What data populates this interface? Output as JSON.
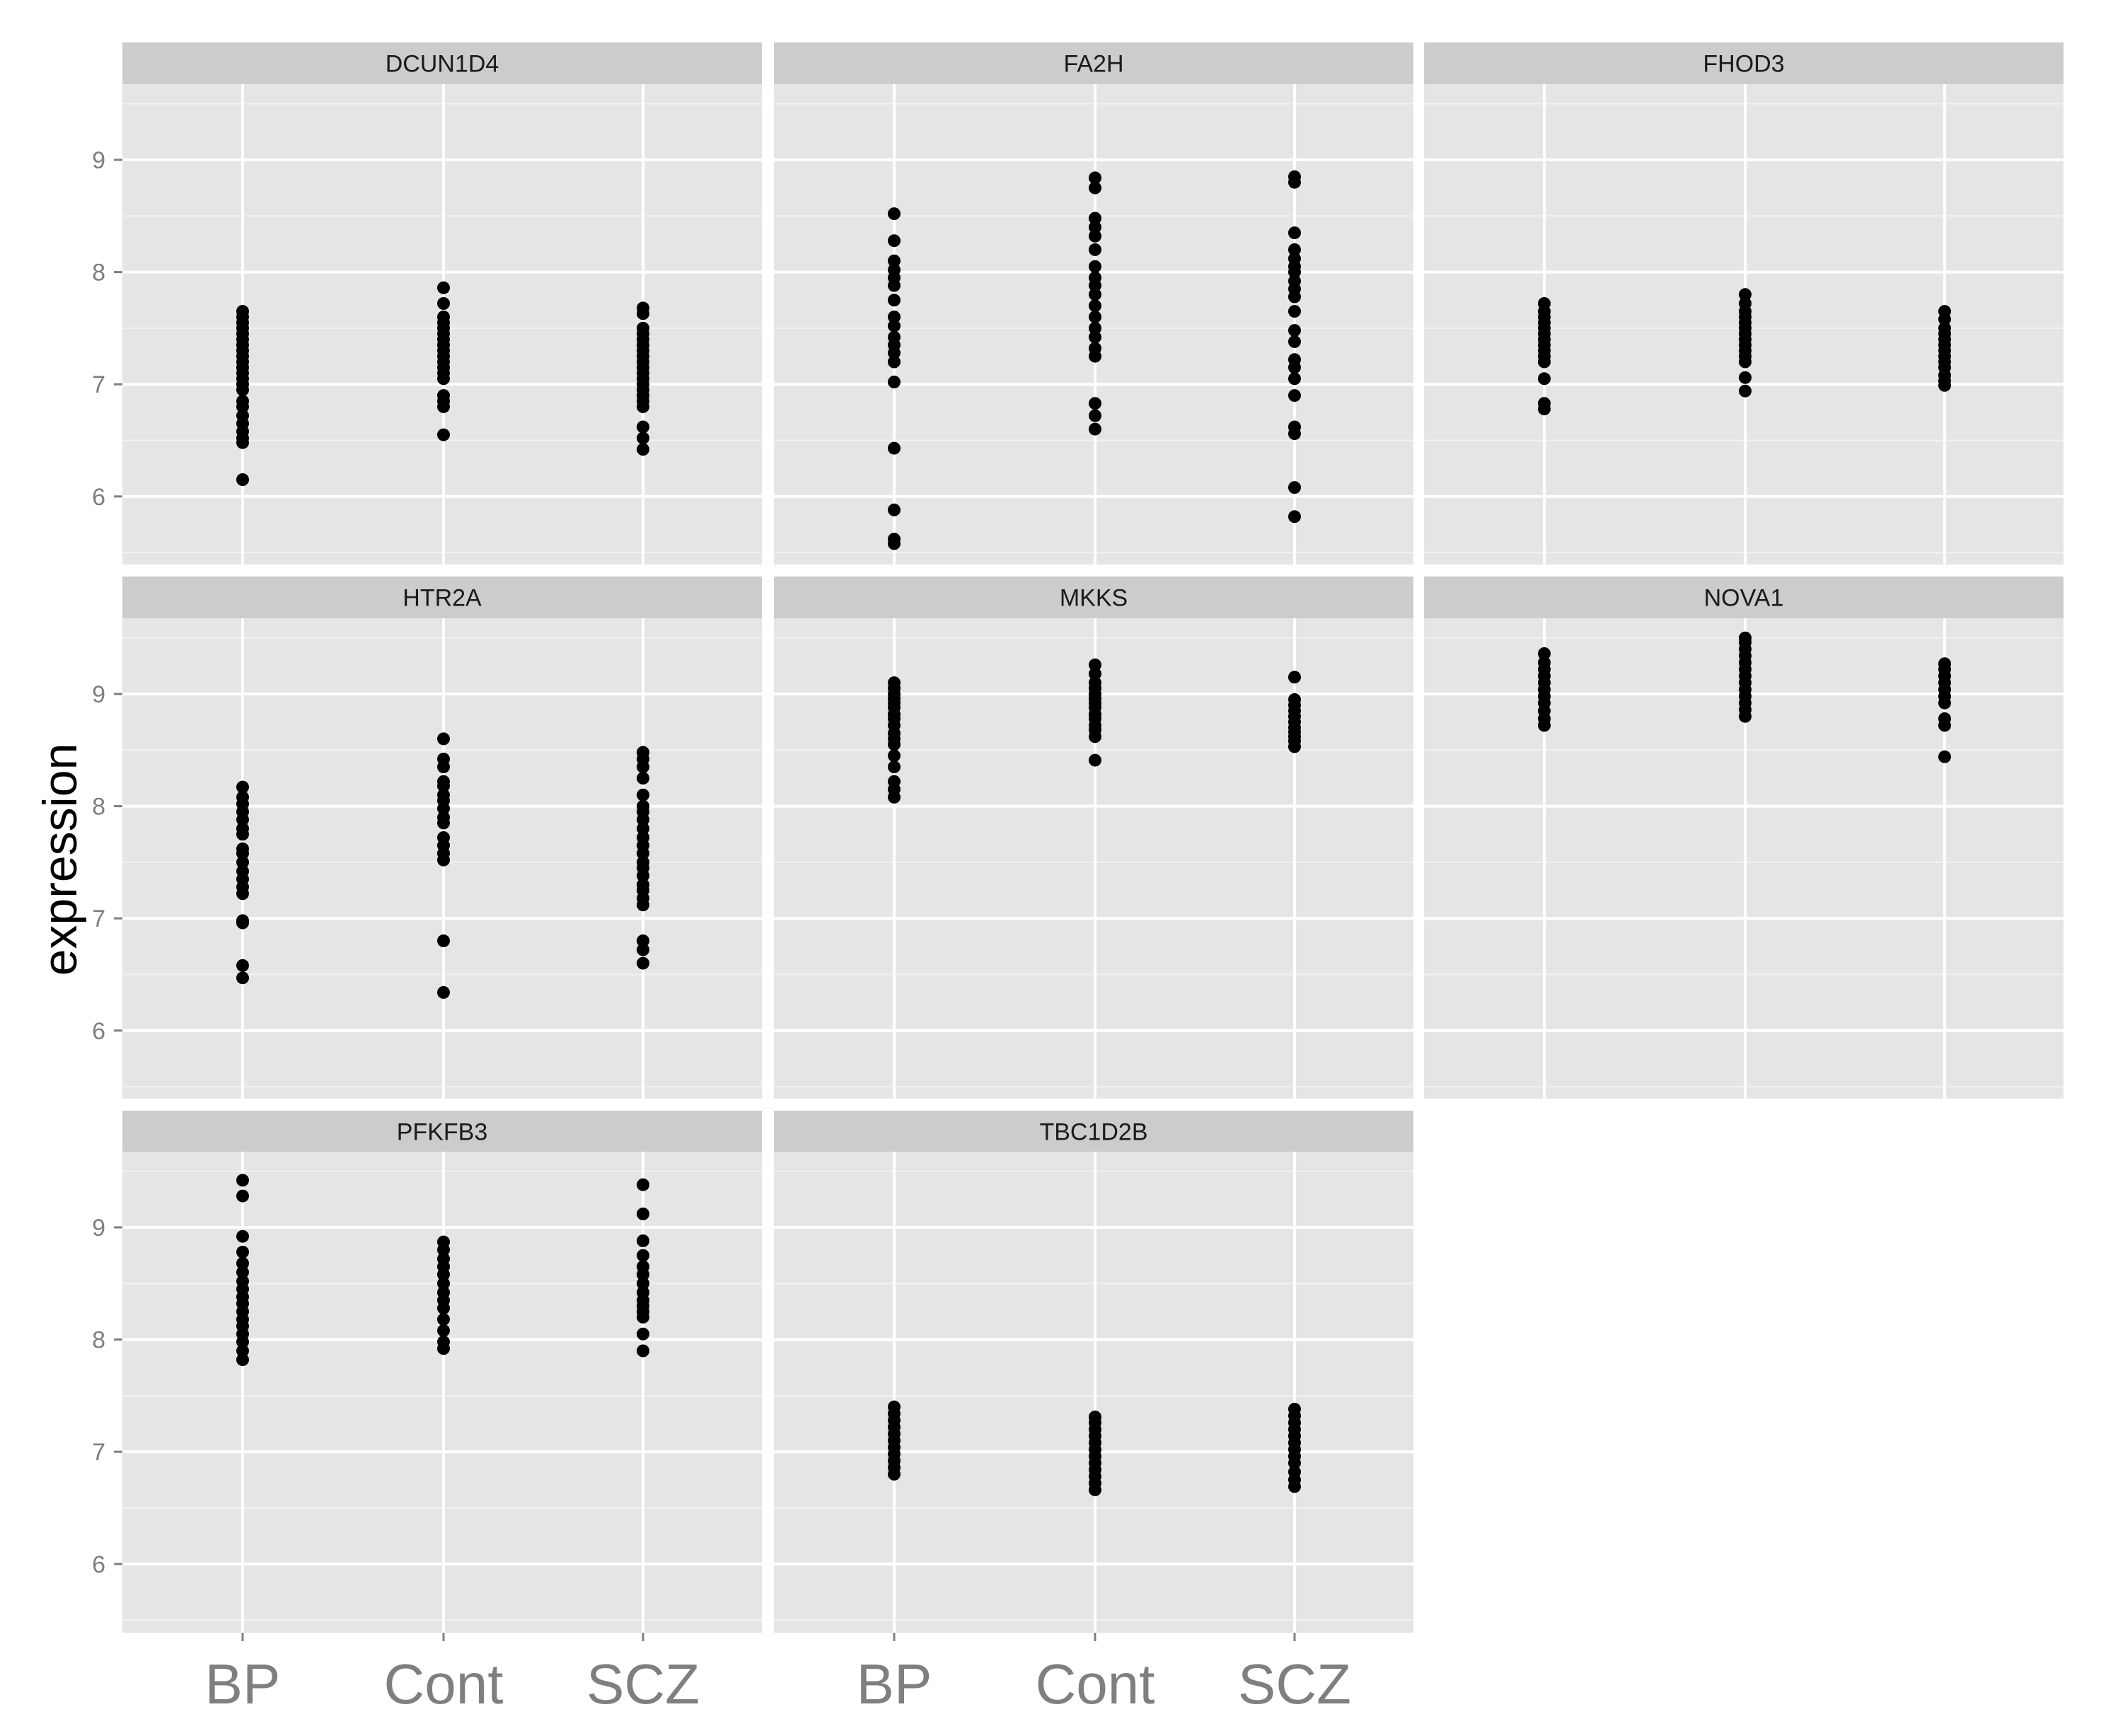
{
  "chart_data": {
    "type": "scatter",
    "facet_layout": "3 columns",
    "ylabel": "expression",
    "xlabel": "",
    "categories": [
      "BP",
      "Cont",
      "SCZ"
    ],
    "y_ticks": [
      6,
      7,
      8,
      9
    ],
    "ylim": [
      5.4,
      9.8
    ],
    "grid": true,
    "colors": {
      "panel_bg": "#e5e5e5",
      "strip_bg": "#cccccc",
      "grid_major": "#ffffff",
      "grid_minor": "#f2f2f2",
      "point": "#000000"
    },
    "panels": [
      {
        "title": "DCUN1D4",
        "series": [
          {
            "category": "BP",
            "values": [
              6.15,
              6.48,
              6.52,
              6.58,
              6.65,
              6.72,
              6.8,
              6.85,
              6.95,
              7.0,
              7.05,
              7.1,
              7.15,
              7.2,
              7.25,
              7.3,
              7.35,
              7.4,
              7.45,
              7.5,
              7.55,
              7.6,
              7.65
            ]
          },
          {
            "category": "Cont",
            "values": [
              6.55,
              6.8,
              6.85,
              6.9,
              7.05,
              7.1,
              7.15,
              7.2,
              7.25,
              7.3,
              7.35,
              7.4,
              7.45,
              7.5,
              7.55,
              7.6,
              7.72,
              7.86
            ]
          },
          {
            "category": "SCZ",
            "values": [
              6.42,
              6.52,
              6.62,
              6.8,
              6.85,
              6.9,
              6.95,
              7.0,
              7.05,
              7.1,
              7.15,
              7.2,
              7.25,
              7.3,
              7.35,
              7.4,
              7.45,
              7.5,
              7.63,
              7.68
            ]
          }
        ]
      },
      {
        "title": "FA2H",
        "series": [
          {
            "category": "BP",
            "values": [
              5.58,
              5.62,
              5.88,
              6.43,
              7.02,
              7.2,
              7.28,
              7.35,
              7.42,
              7.52,
              7.6,
              7.75,
              7.88,
              7.95,
              8.02,
              8.1,
              8.28,
              8.52
            ]
          },
          {
            "category": "Cont",
            "values": [
              6.6,
              6.72,
              6.83,
              7.25,
              7.32,
              7.42,
              7.5,
              7.6,
              7.7,
              7.8,
              7.88,
              7.95,
              8.05,
              8.2,
              8.32,
              8.4,
              8.48,
              8.75,
              8.84
            ]
          },
          {
            "category": "SCZ",
            "values": [
              5.82,
              6.08,
              6.56,
              6.62,
              6.9,
              7.05,
              7.15,
              7.22,
              7.38,
              7.48,
              7.65,
              7.78,
              7.85,
              7.92,
              8.0,
              8.05,
              8.12,
              8.2,
              8.35,
              8.8,
              8.85
            ]
          }
        ]
      },
      {
        "title": "FHOD3",
        "series": [
          {
            "category": "BP",
            "values": [
              6.78,
              6.83,
              7.05,
              7.2,
              7.25,
              7.3,
              7.35,
              7.4,
              7.45,
              7.5,
              7.55,
              7.6,
              7.65,
              7.72
            ]
          },
          {
            "category": "Cont",
            "values": [
              6.94,
              7.06,
              7.2,
              7.25,
              7.3,
              7.35,
              7.4,
              7.45,
              7.5,
              7.55,
              7.6,
              7.65,
              7.72,
              7.8
            ]
          },
          {
            "category": "SCZ",
            "values": [
              6.99,
              7.03,
              7.08,
              7.15,
              7.2,
              7.25,
              7.3,
              7.35,
              7.4,
              7.45,
              7.5,
              7.58,
              7.65
            ]
          }
        ]
      },
      {
        "title": "HTR2A",
        "series": [
          {
            "category": "BP",
            "values": [
              6.47,
              6.58,
              6.96,
              6.98,
              7.22,
              7.28,
              7.35,
              7.42,
              7.5,
              7.58,
              7.62,
              7.75,
              7.8,
              7.88,
              7.95,
              8.02,
              8.08,
              8.17
            ]
          },
          {
            "category": "Cont",
            "values": [
              6.34,
              6.8,
              7.52,
              7.58,
              7.65,
              7.72,
              7.85,
              7.9,
              7.98,
              8.05,
              8.1,
              8.18,
              8.22,
              8.35,
              8.42,
              8.6
            ]
          },
          {
            "category": "SCZ",
            "values": [
              6.6,
              6.72,
              6.8,
              7.12,
              7.18,
              7.25,
              7.3,
              7.38,
              7.45,
              7.5,
              7.58,
              7.65,
              7.72,
              7.8,
              7.88,
              7.95,
              8.0,
              8.1,
              8.25,
              8.35,
              8.42,
              8.48
            ]
          }
        ]
      },
      {
        "title": "MKKS",
        "series": [
          {
            "category": "BP",
            "values": [
              8.08,
              8.15,
              8.22,
              8.35,
              8.45,
              8.55,
              8.6,
              8.65,
              8.72,
              8.78,
              8.82,
              8.88,
              8.92,
              8.96,
              9.0,
              9.05,
              9.1
            ]
          },
          {
            "category": "Cont",
            "values": [
              8.41,
              8.62,
              8.68,
              8.72,
              8.78,
              8.82,
              8.88,
              8.92,
              8.96,
              9.0,
              9.05,
              9.1,
              9.18,
              9.26
            ]
          },
          {
            "category": "SCZ",
            "values": [
              8.53,
              8.58,
              8.62,
              8.66,
              8.7,
              8.75,
              8.8,
              8.85,
              8.9,
              8.95,
              9.15
            ]
          }
        ]
      },
      {
        "title": "NOVA1",
        "series": [
          {
            "category": "BP",
            "values": [
              8.72,
              8.78,
              8.85,
              8.92,
              8.98,
              9.04,
              9.1,
              9.16,
              9.22,
              9.28,
              9.36
            ]
          },
          {
            "category": "Cont",
            "values": [
              8.8,
              8.86,
              8.92,
              8.98,
              9.04,
              9.1,
              9.16,
              9.22,
              9.28,
              9.34,
              9.4,
              9.46,
              9.5
            ]
          },
          {
            "category": "SCZ",
            "values": [
              8.44,
              8.72,
              8.78,
              8.92,
              8.98,
              9.04,
              9.1,
              9.16,
              9.22,
              9.27
            ]
          }
        ]
      },
      {
        "title": "PFKFB3",
        "series": [
          {
            "category": "BP",
            "values": [
              7.82,
              7.9,
              7.98,
              8.05,
              8.12,
              8.18,
              8.25,
              8.32,
              8.38,
              8.45,
              8.52,
              8.6,
              8.68,
              8.78,
              8.92,
              9.28,
              9.42
            ]
          },
          {
            "category": "Cont",
            "values": [
              7.92,
              7.98,
              8.08,
              8.18,
              8.28,
              8.35,
              8.42,
              8.5,
              8.58,
              8.65,
              8.72,
              8.8,
              8.87
            ]
          },
          {
            "category": "SCZ",
            "values": [
              7.9,
              8.05,
              8.2,
              8.25,
              8.3,
              8.35,
              8.42,
              8.5,
              8.58,
              8.65,
              8.75,
              8.88,
              9.12,
              9.38
            ]
          }
        ]
      },
      {
        "title": "TBC1D2B",
        "series": [
          {
            "category": "BP",
            "values": [
              6.8,
              6.86,
              6.92,
              6.98,
              7.04,
              7.1,
              7.16,
              7.22,
              7.28,
              7.34,
              7.4
            ]
          },
          {
            "category": "Cont",
            "values": [
              6.66,
              6.72,
              6.78,
              6.84,
              6.9,
              6.96,
              7.02,
              7.08,
              7.14,
              7.2,
              7.26,
              7.31
            ]
          },
          {
            "category": "SCZ",
            "values": [
              6.69,
              6.75,
              6.82,
              6.9,
              6.96,
              7.02,
              7.08,
              7.14,
              7.2,
              7.26,
              7.32,
              7.38
            ]
          }
        ]
      }
    ]
  }
}
